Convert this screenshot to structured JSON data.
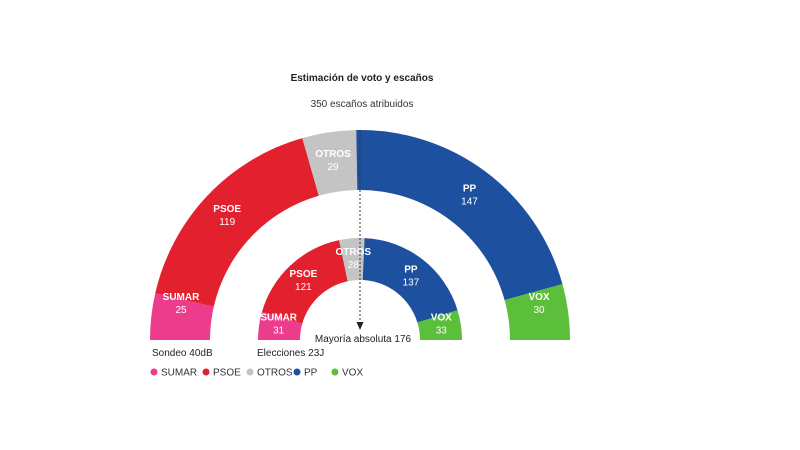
{
  "chart_data": {
    "type": "parliament-semicircle",
    "title": "Estimación de voto y escaños",
    "subtitle": "350 escaños atribuidos",
    "total_seats": 350,
    "majority_label": "Mayoría absoluta 176",
    "parties": [
      {
        "name": "SUMAR",
        "color": "#ec3d8c"
      },
      {
        "name": "PSOE",
        "color": "#e3202d"
      },
      {
        "name": "OTROS",
        "color": "#c4c4c4"
      },
      {
        "name": "PP",
        "color": "#1e50a0"
      },
      {
        "name": "VOX",
        "color": "#5cbf3c"
      }
    ],
    "series": [
      {
        "name": "Sondeo 40dB",
        "ring": "outer",
        "seats": [
          {
            "party": "SUMAR",
            "value": "25"
          },
          {
            "party": "PSOE",
            "value": "119"
          },
          {
            "party": "OTROS",
            "value": "29"
          },
          {
            "party": "PP",
            "value": "147"
          },
          {
            "party": "VOX",
            "value": "30"
          }
        ]
      },
      {
        "name": "Elecciones 23J",
        "ring": "inner",
        "seats": [
          {
            "party": "SUMAR",
            "value": "31"
          },
          {
            "party": "PSOE",
            "value": "121"
          },
          {
            "party": "OTROS",
            "value": "28"
          },
          {
            "party": "PP",
            "value": "137"
          },
          {
            "party": "VOX",
            "value": "33"
          }
        ]
      }
    ],
    "legend": [
      "SUMAR",
      "PSOE",
      "OTROS",
      "PP",
      "VOX"
    ]
  }
}
